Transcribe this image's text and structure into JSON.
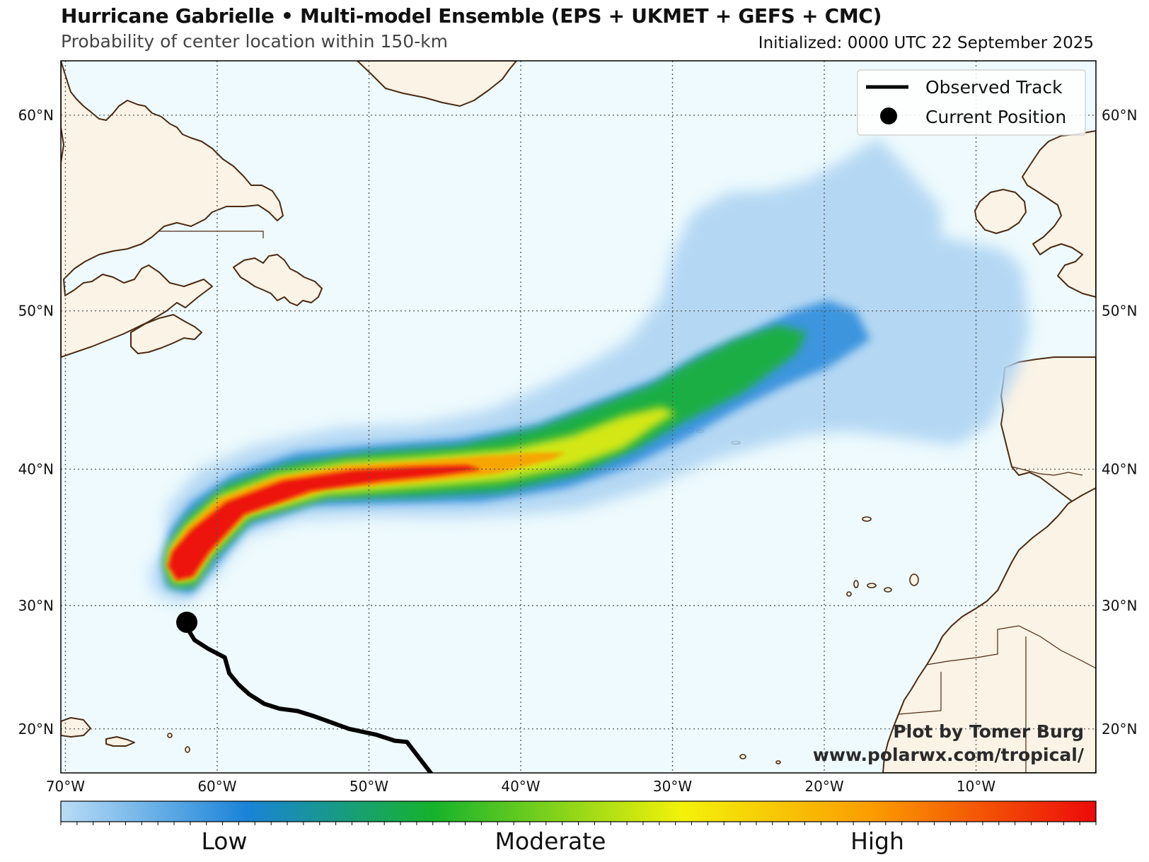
{
  "title": "Hurricane Gabrielle • Multi-model Ensemble (EPS + UKMET + GEFS + CMC)",
  "subtitle": "Probability of center location within 150-km",
  "initialized": "Initialized: 0000 UTC 22 September 2025",
  "map": {
    "lon_range": [
      -70,
      -2
    ],
    "lat_range": [
      16,
      62
    ],
    "lon_ticks": [
      -70,
      -60,
      -50,
      -40,
      -30,
      -20,
      -10
    ],
    "lon_labels": [
      "70°W",
      "60°W",
      "50°W",
      "40°W",
      "30°W",
      "20°W",
      "10°W"
    ],
    "lat_ticks": [
      20,
      30,
      40,
      50,
      60
    ],
    "lat_labels": [
      "20°N",
      "30°N",
      "40°N",
      "50°N",
      "60°N"
    ],
    "ocean_color": "#eefafd",
    "land_color": "#fbf3e6",
    "coast_color": "#4a2a12"
  },
  "observed_track": [
    [
      -45.9,
      16.2
    ],
    [
      -47.5,
      18.9
    ],
    [
      -48.3,
      19.0
    ],
    [
      -49.5,
      19.5
    ],
    [
      -51.3,
      20.0
    ],
    [
      -52.6,
      20.6
    ],
    [
      -53.7,
      21.1
    ],
    [
      -54.7,
      21.5
    ],
    [
      -55.9,
      21.7
    ],
    [
      -56.9,
      22.1
    ],
    [
      -57.9,
      22.9
    ],
    [
      -58.6,
      23.7
    ],
    [
      -59.2,
      24.6
    ],
    [
      -59.5,
      25.9
    ],
    [
      -60.6,
      26.6
    ],
    [
      -61.5,
      27.3
    ],
    [
      -62.0,
      28.3
    ]
  ],
  "current_position": [
    -62.0,
    28.7
  ],
  "legend": {
    "items": [
      {
        "label": "Observed Track",
        "icon": "line-icon"
      },
      {
        "label": "Current Position",
        "icon": "dot-icon"
      }
    ]
  },
  "colorbar": {
    "colors": [
      "#b9dcf5",
      "#1a83d8",
      "#16b32c",
      "#f3f20a",
      "#fb9e00",
      "#ec0a0a"
    ],
    "labels": [
      {
        "text": "Low",
        "at": 0.157
      },
      {
        "text": "Moderate",
        "at": 0.473
      },
      {
        "text": "High",
        "at": 0.789
      }
    ]
  },
  "credit": {
    "line1": "Plot by Tomer Burg",
    "line2": "www.polarwx.com/tropical/"
  }
}
